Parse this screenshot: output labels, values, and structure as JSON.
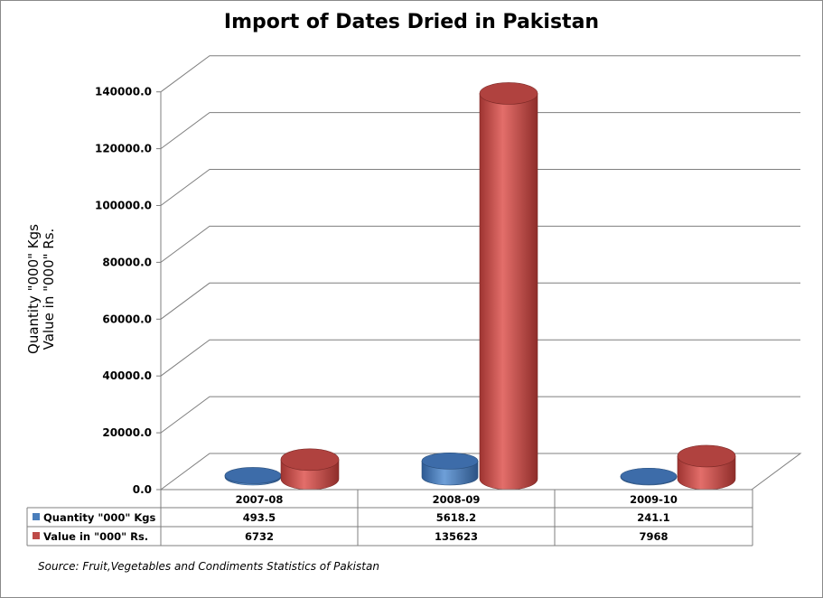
{
  "chart_data": {
    "type": "bar",
    "title": "Import of Dates Dried in Pakistan",
    "ylabel": [
      "Quantity \"000\" Kgs",
      "Value in \"000\" Rs."
    ],
    "xlabel": "",
    "categories": [
      "2007-08",
      "2008-09",
      "2009-10"
    ],
    "series": [
      {
        "name": "Quantity \"000\" Kgs",
        "values": [
          493.5,
          5618.2,
          241.1
        ],
        "labels": [
          "493.5",
          "5618.2",
          "241.1"
        ],
        "color": "#4a7ebb"
      },
      {
        "name": "Value in \"000\" Rs.",
        "values": [
          6732,
          135623,
          7968
        ],
        "labels": [
          "6732",
          "135623",
          "7968"
        ],
        "color": "#be4b48"
      }
    ],
    "ylim": [
      0,
      140000
    ],
    "yticks": [
      "0.0",
      "20000.0",
      "40000.0",
      "60000.0",
      "80000.0",
      "100000.0",
      "120000.0",
      "140000.0"
    ],
    "grid": true,
    "legend": "data-table-below",
    "three_d": true
  },
  "source_note": "Source: Fruit,Vegetables and Condiments Statistics of Pakistan"
}
